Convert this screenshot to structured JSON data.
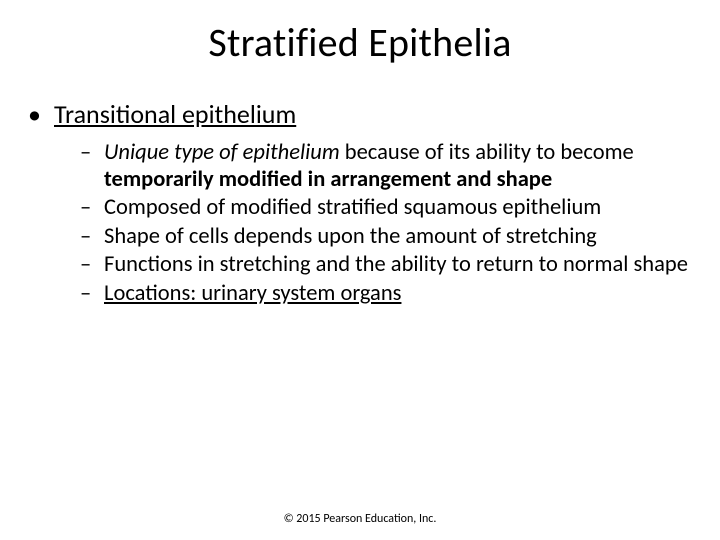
{
  "slide": {
    "title": "Stratified Epithelia",
    "background_color": "#ffffff",
    "text_color": "#000000",
    "font_family": "Calibri",
    "title_fontsize": 40,
    "body_l1_fontsize": 26,
    "body_l2_fontsize": 22.5,
    "footer_fontsize": 12,
    "bullet_l1_glyph": "•",
    "bullet_l2_glyph": "–",
    "l1": {
      "text": "Transitional epithelium",
      "underline": true
    },
    "l2_items": [
      {
        "runs": [
          {
            "text": "Unique type of epithelium",
            "italic": true
          },
          {
            "text": " because of its ability to become "
          },
          {
            "text": "temporarily modified in arrangement and shape",
            "bold": true
          }
        ]
      },
      {
        "runs": [
          {
            "text": "Composed of modified stratified squamous epithelium"
          }
        ]
      },
      {
        "runs": [
          {
            "text": "Shape of cells depends upon the amount of stretching"
          }
        ]
      },
      {
        "runs": [
          {
            "text": "Functions in stretching and the ability to return to normal shape"
          }
        ]
      },
      {
        "runs": [
          {
            "text": "Locations: urinary system organs",
            "underline": true
          }
        ]
      }
    ],
    "footer": "© 2015 Pearson Education, Inc."
  }
}
